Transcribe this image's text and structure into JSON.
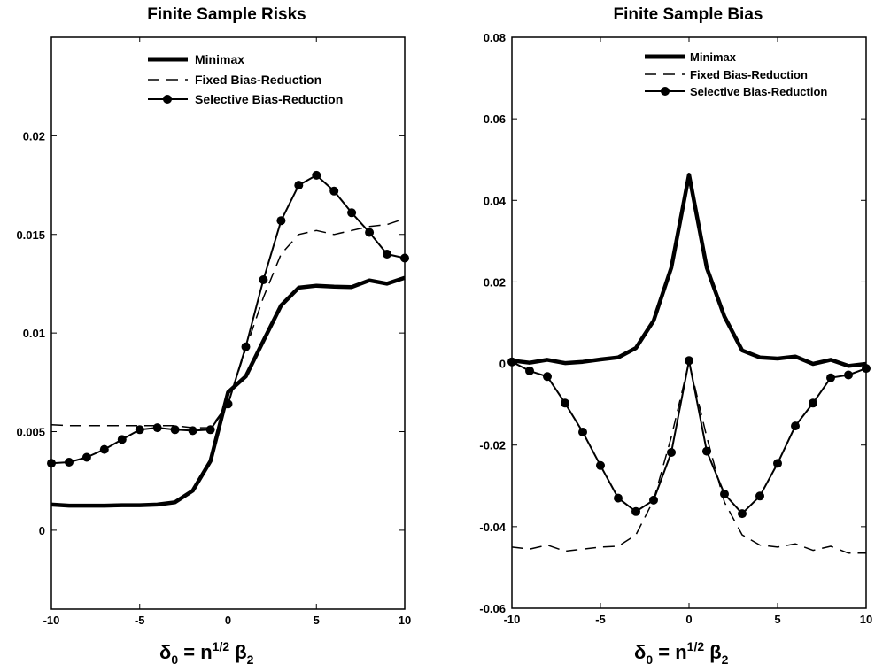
{
  "chart_data": [
    {
      "type": "line",
      "title": "Finite Sample Risks",
      "xlabel": "δ0 = n^(1/2) β2",
      "xlim": [
        -10,
        10
      ],
      "ylim": [
        -0.004,
        0.025
      ],
      "xticks": [
        "-10",
        "-5",
        "0",
        "5",
        "10"
      ],
      "yticks": [
        "0",
        "0.005",
        "0.01",
        "0.015",
        "0.02"
      ],
      "grid": false,
      "legend_position": "top",
      "x": [
        -10,
        -9,
        -8,
        -7,
        -6,
        -5,
        -4,
        -3,
        -2,
        -1,
        0,
        1,
        2,
        3,
        4,
        5,
        6,
        7,
        8,
        9,
        10
      ],
      "series": [
        {
          "name": "Minimax",
          "style": "thick-solid",
          "values": [
            0.0013,
            0.00125,
            0.00125,
            0.00125,
            0.00127,
            0.00127,
            0.0013,
            0.00142,
            0.002,
            0.0035,
            0.007,
            0.0078,
            0.0096,
            0.0114,
            0.0123,
            0.0124,
            0.01235,
            0.01233,
            0.01267,
            0.0125,
            0.0128
          ]
        },
        {
          "name": "Fixed Bias-Reduction",
          "style": "dashed",
          "values": [
            0.00535,
            0.0053,
            0.0053,
            0.0053,
            0.0053,
            0.0053,
            0.0053,
            0.0053,
            0.0052,
            0.0052,
            0.0064,
            0.0092,
            0.0118,
            0.014,
            0.015,
            0.0152,
            0.015,
            0.0152,
            0.0154,
            0.0155,
            0.0158
          ]
        },
        {
          "name": "Selective Bias-Reduction",
          "style": "solid-markers",
          "values": [
            0.0034,
            0.00345,
            0.0037,
            0.0041,
            0.0046,
            0.0051,
            0.0052,
            0.0051,
            0.00505,
            0.0051,
            0.0064,
            0.0093,
            0.0127,
            0.0157,
            0.0175,
            0.018,
            0.0172,
            0.0161,
            0.0151,
            0.014,
            0.0138
          ]
        }
      ]
    },
    {
      "type": "line",
      "title": "Finite Sample Bias",
      "xlabel": "δ0 = n^(1/2) β2",
      "xlim": [
        -10,
        10
      ],
      "ylim": [
        -0.06,
        0.08
      ],
      "xticks": [
        "-10",
        "-5",
        "0",
        "5",
        "10"
      ],
      "yticks": [
        "-0.06",
        "-0.04",
        "-0.02",
        "0",
        "0.02",
        "0.04",
        "0.06",
        "0.08"
      ],
      "grid": false,
      "legend_position": "top",
      "x": [
        -10,
        -9,
        -8,
        -7,
        -6,
        -5,
        -4,
        -3,
        -2,
        -1,
        0,
        1,
        2,
        3,
        4,
        5,
        6,
        7,
        8,
        9,
        10
      ],
      "series": [
        {
          "name": "Minimax",
          "style": "thick-solid",
          "values": [
            0.0007,
            0.0002,
            0.0009,
            0.0001,
            0.0004,
            0.001,
            0.0015,
            0.0038,
            0.0105,
            0.0235,
            0.0463,
            0.0235,
            0.0115,
            0.0032,
            0.0015,
            0.0012,
            0.0017,
            -0.0001,
            0.0009,
            -0.0006,
            -0.0001
          ]
        },
        {
          "name": "Fixed Bias-Reduction",
          "style": "dashed",
          "values": [
            -0.045,
            -0.0455,
            -0.0445,
            -0.046,
            -0.0455,
            -0.045,
            -0.0448,
            -0.042,
            -0.0335,
            -0.018,
            0.0003,
            -0.018,
            -0.034,
            -0.042,
            -0.0445,
            -0.045,
            -0.0442,
            -0.0458,
            -0.0448,
            -0.0465,
            -0.0465
          ]
        },
        {
          "name": "Selective Bias-Reduction",
          "style": "solid-markers",
          "values": [
            0.0004,
            -0.0018,
            -0.0032,
            -0.0097,
            -0.0168,
            -0.025,
            -0.033,
            -0.0363,
            -0.0335,
            -0.0218,
            0.0007,
            -0.0215,
            -0.032,
            -0.0368,
            -0.0325,
            -0.0245,
            -0.0153,
            -0.0097,
            -0.0035,
            -0.0028,
            -0.0012
          ]
        }
      ]
    }
  ],
  "axis_label": {
    "delta": "δ",
    "sub0": "0",
    "eq": " = n",
    "sup": "1/2",
    "beta": " β",
    "sub2": "2"
  }
}
